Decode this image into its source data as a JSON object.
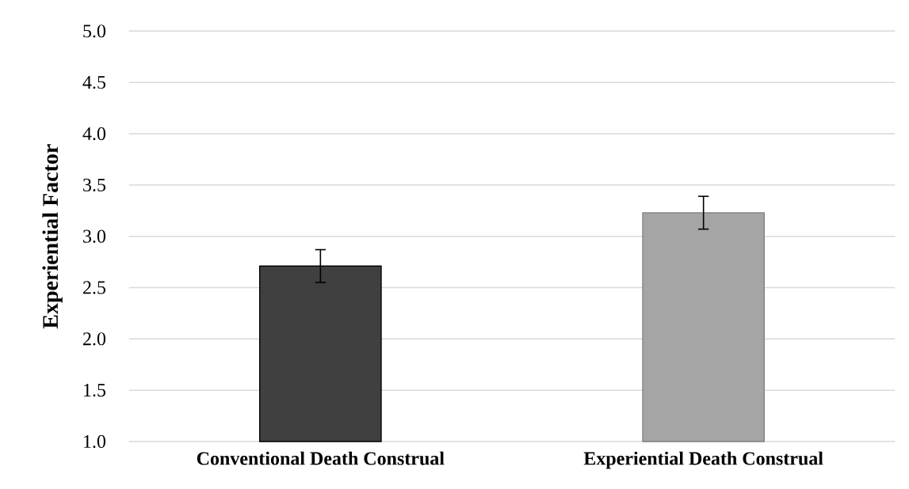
{
  "chart_data": {
    "type": "bar",
    "ylabel": "Experiential Factor",
    "categories": [
      "Conventional Death Construal",
      "Experiential Death Construal"
    ],
    "values": [
      2.71,
      3.23
    ],
    "errors": [
      0.16,
      0.16
    ],
    "colors": [
      "#404040",
      "#a5a5a5"
    ],
    "ylim": [
      1,
      5
    ],
    "yticks": [
      {
        "value": 1,
        "label": "1.0"
      },
      {
        "value": 1.5,
        "label": "1.5"
      },
      {
        "value": 2,
        "label": "2.0"
      },
      {
        "value": 2.5,
        "label": "2.5"
      },
      {
        "value": 3,
        "label": "3.0"
      },
      {
        "value": 3.5,
        "label": "3.5"
      },
      {
        "value": 4,
        "label": "4.0"
      },
      {
        "value": 4.5,
        "label": "4.5"
      },
      {
        "value": 5,
        "label": "5.0"
      }
    ],
    "grid": "y"
  }
}
